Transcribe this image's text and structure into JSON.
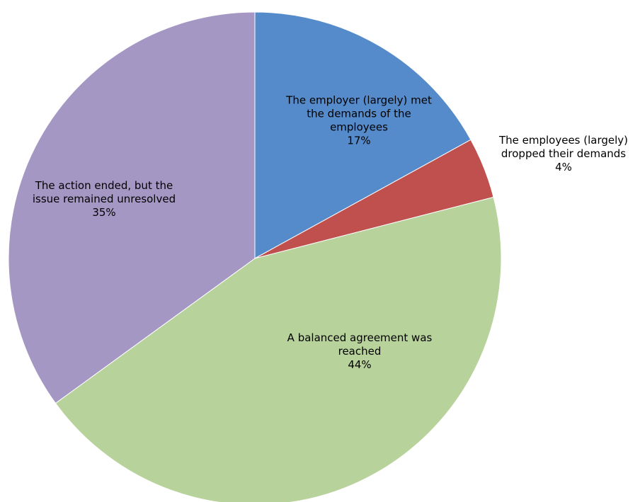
{
  "chart_data": {
    "type": "pie",
    "slices": [
      {
        "label_lines": [
          "The employer (largely) met",
          "the demands of the",
          "employees"
        ],
        "pct_label": "17%",
        "value": 17,
        "color": "#558ACB"
      },
      {
        "label_lines": [
          "The employees (largely)",
          "dropped their demands"
        ],
        "pct_label": "4%",
        "value": 4,
        "color": "#C0504D"
      },
      {
        "label_lines": [
          "A balanced agreement was",
          "reached"
        ],
        "pct_label": "44%",
        "value": 44,
        "color": "#B8D29B"
      },
      {
        "label_lines": [
          "The action ended, but the",
          "issue remained unresolved"
        ],
        "pct_label": "35%",
        "value": 35,
        "color": "#A597C4"
      }
    ],
    "start_angle_deg": 0,
    "direction": "clockwise",
    "legend": "none"
  }
}
